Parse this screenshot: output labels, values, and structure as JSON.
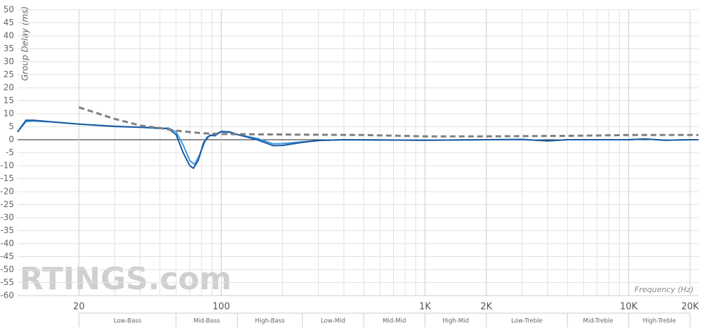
{
  "chart_data": {
    "type": "line",
    "y_label": "Group Delay (ms)",
    "x_label": "Frequency (Hz)",
    "watermark": "RTINGS.com",
    "x_scale": "log",
    "grid": true,
    "minor_grid": true,
    "xlim": [
      10,
      22000
    ],
    "ylim": [
      -60,
      50
    ],
    "xticks": [
      20,
      100,
      {
        "value": 1000,
        "label": "1K"
      },
      {
        "value": 2000,
        "label": "2K"
      },
      {
        "value": 10000,
        "label": "10K"
      },
      {
        "value": 20000,
        "label": "20K"
      }
    ],
    "yticks": [
      50,
      45,
      40,
      35,
      30,
      25,
      20,
      15,
      10,
      5,
      0,
      -5,
      -10,
      -15,
      -20,
      -25,
      -30,
      -35,
      -40,
      -45,
      -50,
      -55,
      -60
    ],
    "bands": [
      "Low-Bass",
      "Mid-Bass",
      "High-Bass",
      "Low-Mid",
      "Mid-Mid",
      "High-Mid",
      "Low-Treble",
      "Mid-Treble",
      "High-Treble"
    ],
    "band_edges": [
      20,
      60,
      120,
      250,
      500,
      1000,
      2000,
      5000,
      10000,
      20000
    ],
    "series": [
      {
        "color": "#3a9ae0",
        "dash": false,
        "x": [
          10,
          11,
          12,
          15,
          20,
          30,
          40,
          50,
          55,
          60,
          65,
          70,
          74,
          78,
          85,
          95,
          100,
          110,
          120,
          150,
          180,
          200,
          250,
          300,
          400,
          1000,
          2000,
          3000,
          4000,
          5000,
          10000,
          12000,
          15000,
          20000,
          22000
        ],
        "values": [
          3,
          7,
          7.2,
          6.8,
          6,
          5.2,
          4.8,
          4.3,
          4.5,
          3,
          -2,
          -8,
          -9.5,
          -6,
          1,
          2.5,
          3,
          2.8,
          2,
          0.5,
          -1.6,
          -1.5,
          -0.8,
          -0.3,
          0,
          -0.2,
          0,
          0.1,
          -0.4,
          0,
          0,
          0.3,
          -0.2,
          0,
          0
        ]
      },
      {
        "color": "#1a5aa0",
        "dash": false,
        "x": [
          10,
          11,
          12,
          15,
          20,
          30,
          40,
          50,
          55,
          60,
          65,
          70,
          73,
          77,
          82,
          88,
          93,
          100,
          110,
          120,
          150,
          180,
          200,
          250,
          300,
          400,
          1000,
          2000,
          3000,
          4000,
          5000,
          10000,
          12000,
          15000,
          20000,
          22000
        ],
        "values": [
          3,
          7.5,
          7.5,
          6.8,
          6,
          5.1,
          4.8,
          4.5,
          4.2,
          2,
          -5,
          -10,
          -11,
          -8,
          -1,
          1.8,
          1.5,
          3.2,
          3,
          2,
          0,
          -2.3,
          -2.2,
          -1,
          -0.3,
          0,
          -0.2,
          0,
          0.1,
          -0.5,
          0,
          0,
          0.3,
          -0.2,
          0,
          0
        ]
      },
      {
        "color": "#808080",
        "dash": true,
        "x": [
          20,
          30,
          40,
          50,
          60,
          80,
          100,
          200,
          500,
          1000,
          2000,
          5000,
          10000,
          20000,
          22000
        ],
        "values": [
          12.5,
          8,
          5.5,
          4.5,
          3.5,
          2.5,
          2.2,
          2,
          1.8,
          1.3,
          1.3,
          1.5,
          1.8,
          1.8,
          1.8
        ]
      }
    ]
  }
}
